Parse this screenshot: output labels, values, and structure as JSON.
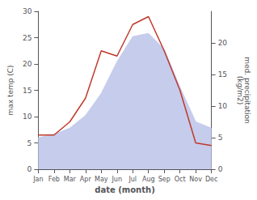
{
  "chart_data": {
    "type": "line",
    "categories": [
      "Jan",
      "Feb",
      "Mar",
      "Apr",
      "May",
      "Jun",
      "Jul",
      "Aug",
      "Sep",
      "Oct",
      "Nov",
      "Dec"
    ],
    "xlabel": "date (month)",
    "ylabel": "max temp (C)",
    "y2label": "med. precipitation\n(kg/m2)",
    "series": [
      {
        "type": "area",
        "axis": "y2",
        "color": "#c5ccec",
        "values": [
          5.0,
          5.5,
          6.5,
          8.5,
          12.0,
          17.0,
          21.0,
          21.5,
          19.0,
          13.0,
          7.5,
          6.5
        ]
      },
      {
        "type": "line",
        "axis": "y",
        "color": "#c0392b",
        "values": [
          6.5,
          6.5,
          9.0,
          13.5,
          22.5,
          21.5,
          27.5,
          29.0,
          22.5,
          15.0,
          5.0,
          4.5
        ]
      }
    ],
    "ylim": [
      0,
      30
    ],
    "yticks": [
      0,
      5,
      10,
      15,
      20,
      25,
      30
    ],
    "y2lim": [
      0,
      25
    ],
    "y2ticks": [
      0,
      5,
      10,
      15,
      20
    ],
    "grid": false
  }
}
